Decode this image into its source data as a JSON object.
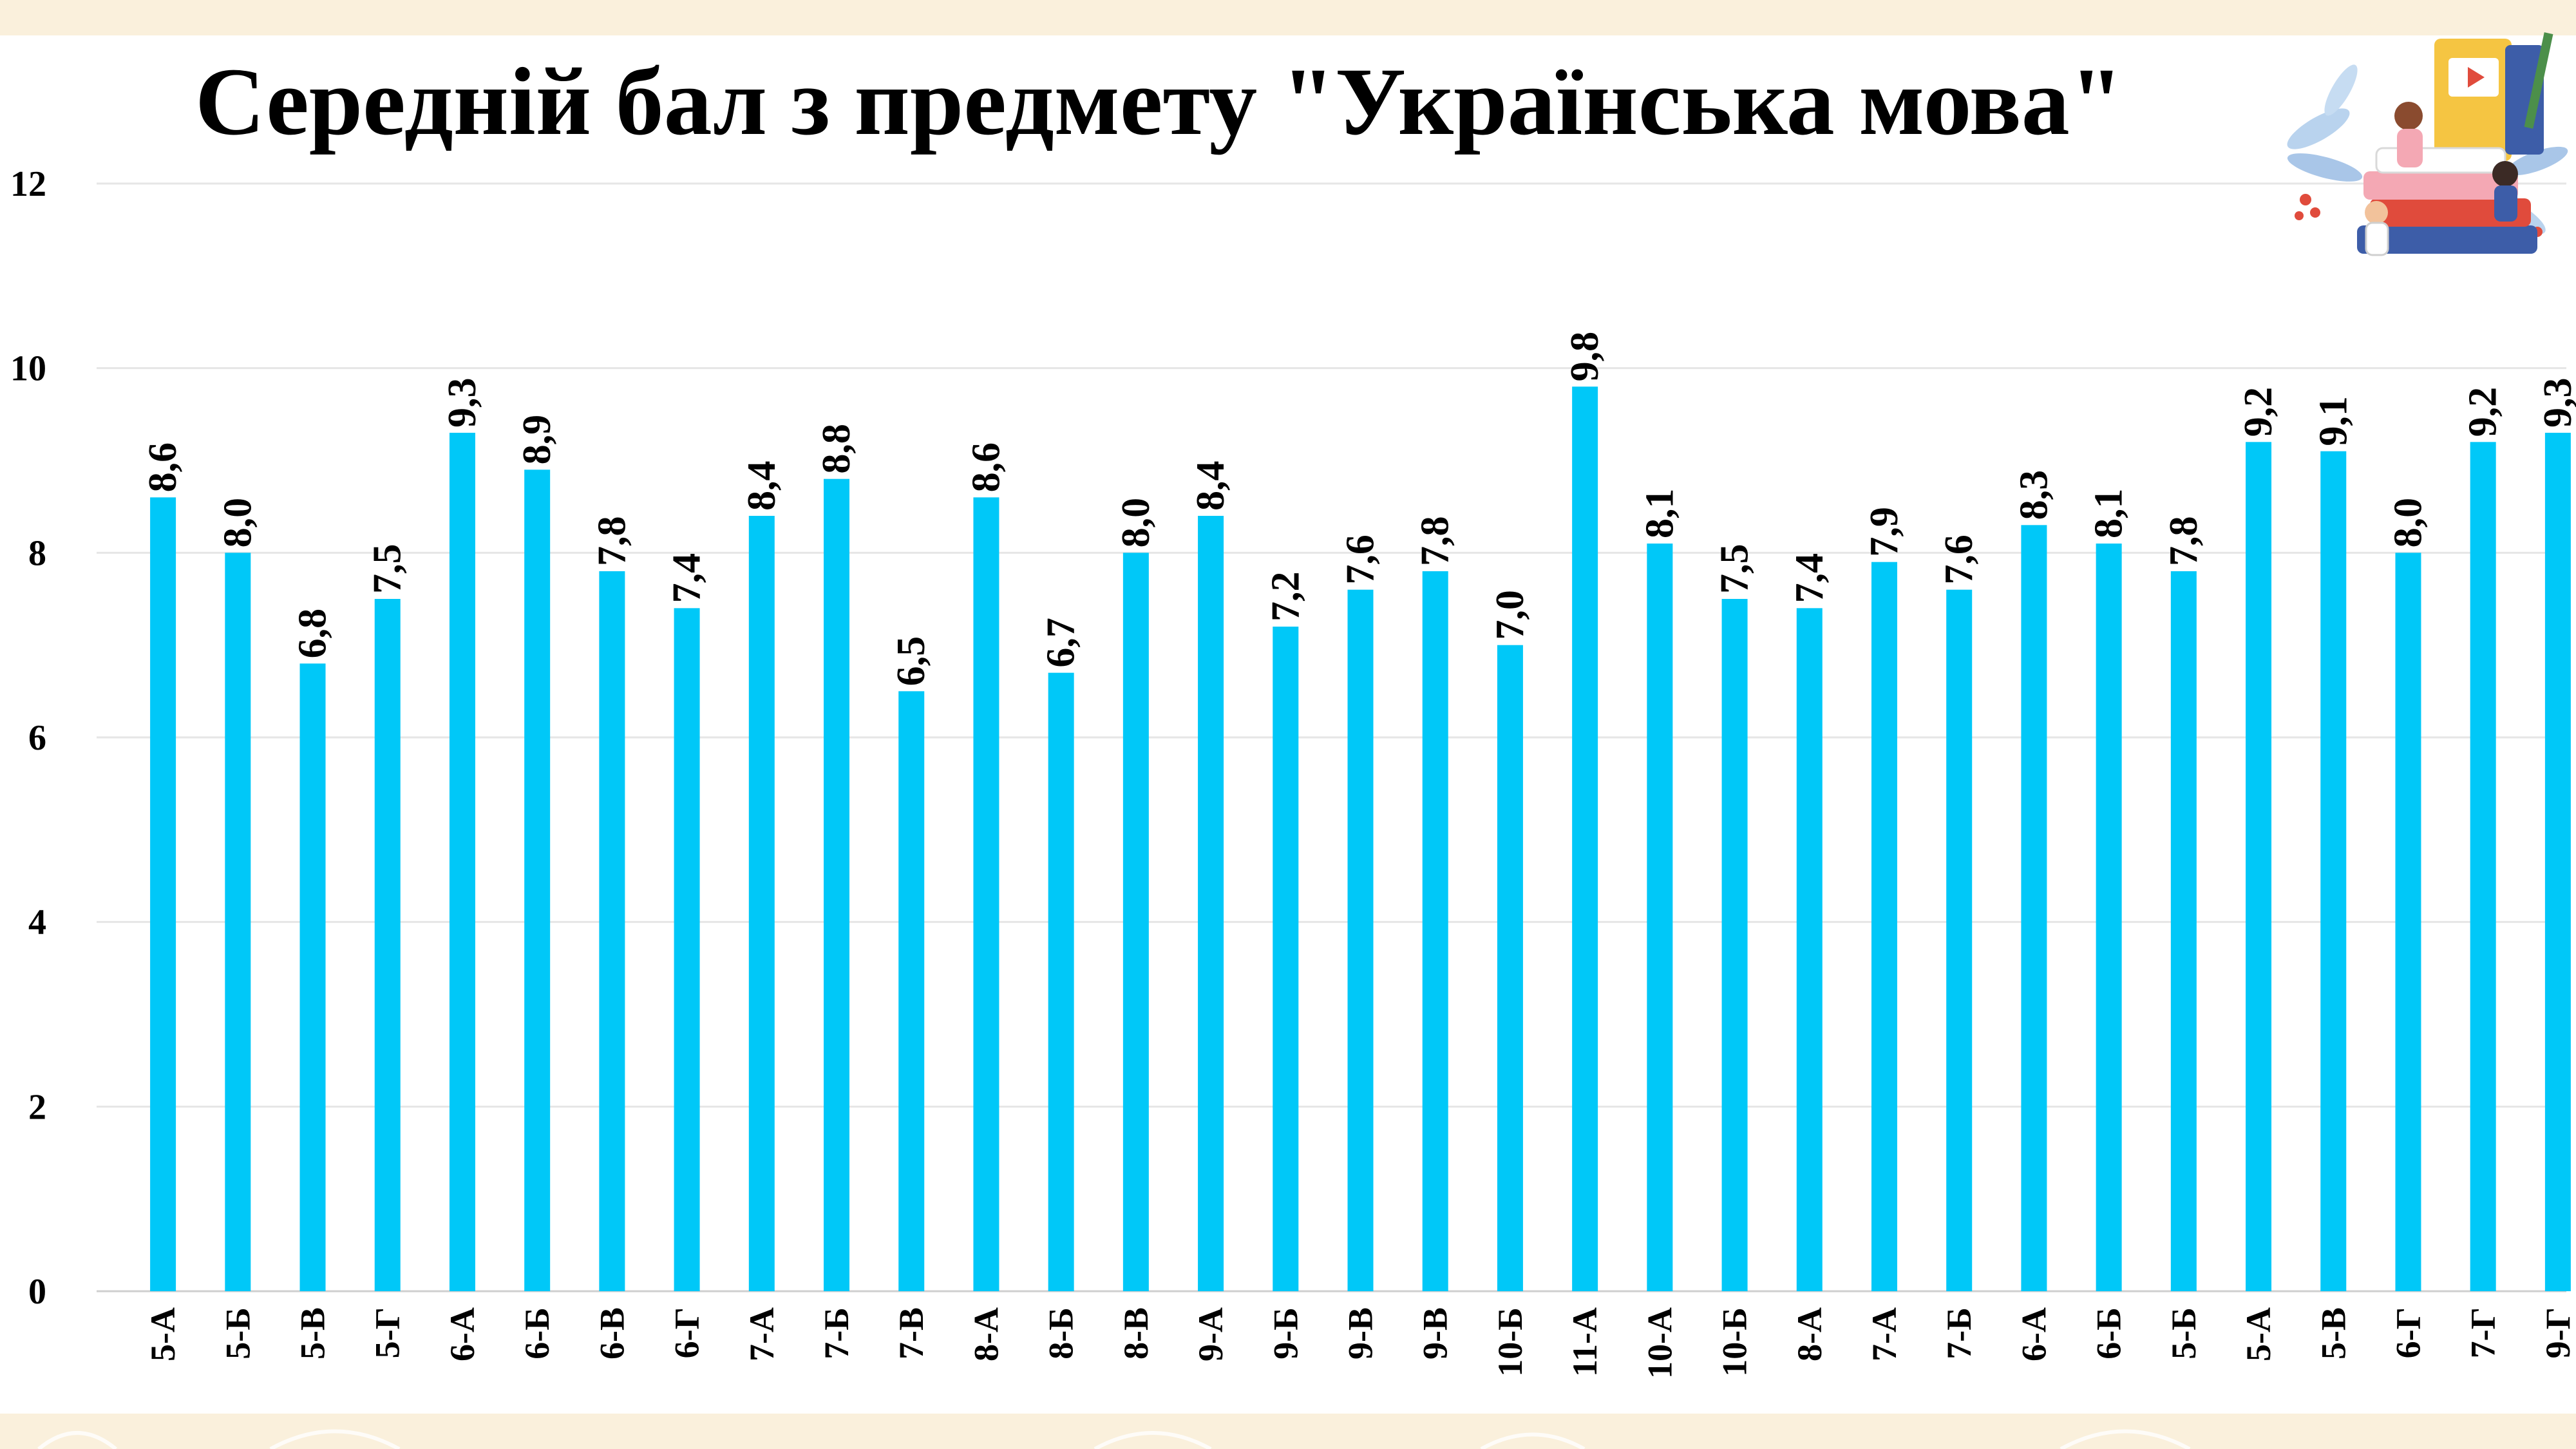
{
  "chart_data": {
    "type": "bar",
    "title": "Середній бал з предмету \"Українська мова\"",
    "xlabel": "",
    "ylabel": "",
    "ylim": [
      0,
      12
    ],
    "yticks": [
      "0",
      "2",
      "4",
      "6",
      "8",
      "10",
      "12"
    ],
    "grid": true,
    "legend": "none",
    "bar_color": "#00c8f8",
    "categories": [
      "5-А",
      "5-Б",
      "5-В",
      "5-Г",
      "6-А",
      "6-Б",
      "6-В",
      "6-Г",
      "7-А",
      "7-Б",
      "7-В",
      "8-А",
      "8-Б",
      "8-В",
      "9-А",
      "9-Б",
      "9-В",
      "9-В",
      "10-Б",
      "11-А",
      "10-А",
      "10-Б",
      "8-А",
      "7-А",
      "7-Б",
      "6-А",
      "6-Б",
      "5-Б",
      "5-А",
      "5-В",
      "6-Г",
      "7-Г",
      "9-Г"
    ],
    "values": [
      8.6,
      8.0,
      6.8,
      7.5,
      9.3,
      8.9,
      7.8,
      7.4,
      8.4,
      8.8,
      6.5,
      8.6,
      6.7,
      8.0,
      8.4,
      7.2,
      7.6,
      7.8,
      7.0,
      9.8,
      8.1,
      7.5,
      7.4,
      7.9,
      7.6,
      8.3,
      8.1,
      7.8,
      9.2,
      9.1,
      8.0,
      9.2,
      9.3
    ],
    "data_labels": [
      "8,6",
      "8,0",
      "6,8",
      "7,5",
      "9,3",
      "8,9",
      "7,8",
      "7,4",
      "8,4",
      "8,8",
      "6,5",
      "8,6",
      "6,7",
      "8,0",
      "8,4",
      "7,2",
      "7,6",
      "7,8",
      "7,0",
      "9,8",
      "8,1",
      "7,5",
      "7,4",
      "7,9",
      "7,6",
      "8,3",
      "8,1",
      "7,8",
      "9,2",
      "9,1",
      "8,0",
      "9,2",
      "9,3"
    ]
  },
  "illustration": {
    "icon": "books-and-students-illustration"
  },
  "colors": {
    "background": "#faf0dc",
    "panel": "#ffffff",
    "bar": "#00c8f8",
    "grid": "#e6e6e6"
  }
}
